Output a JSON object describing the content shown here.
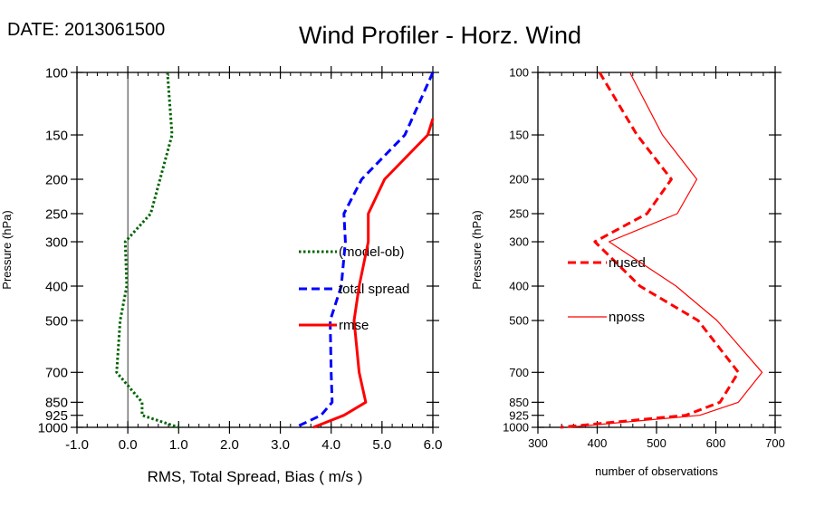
{
  "header": {
    "date_label": "DATE: 2013061500",
    "title": "Wind Profiler - Horz. Wind"
  },
  "colors": {
    "bias": "#006400",
    "spread": "#0000ff",
    "rmse": "#ff0000",
    "zero_line": "#000000"
  },
  "chart_data": [
    {
      "id": "left",
      "type": "line",
      "xlabel": "RMS, Total Spread, Bias ( m/s )",
      "ylabel": "Pressure (hPa)",
      "xlim": [
        -1.0,
        6.0
      ],
      "ylim": [
        1000,
        100
      ],
      "yscale": "log",
      "x_ticks": [
        -1.0,
        0.0,
        1.0,
        2.0,
        3.0,
        4.0,
        5.0,
        6.0
      ],
      "x_tick_labels": [
        "-1.0",
        "0.0",
        "1.0",
        "2.0",
        "3.0",
        "4.0",
        "5.0",
        "6.0"
      ],
      "y_ticks": [
        100,
        150,
        200,
        250,
        300,
        400,
        500,
        700,
        850,
        925,
        1000
      ],
      "y_tick_labels": [
        "100",
        "150",
        "200",
        "250",
        "300",
        "400",
        "500",
        "700",
        "850",
        "925",
        "1000"
      ],
      "zero_line": 0.0,
      "series": [
        {
          "name": "(model-ob)",
          "style": "dotted",
          "color": "#006400",
          "pressure": [
            100,
            150,
            250,
            300,
            400,
            500,
            700,
            850,
            925,
            1000
          ],
          "values": [
            0.78,
            0.87,
            0.45,
            -0.05,
            -0.02,
            -0.15,
            -0.22,
            0.28,
            0.28,
            1.0
          ]
        },
        {
          "name": "total spread",
          "style": "dashed",
          "color": "#0000ff",
          "pressure": [
            100,
            150,
            200,
            250,
            300,
            400,
            500,
            700,
            850,
            925,
            1000
          ],
          "values": [
            6.0,
            5.45,
            4.6,
            4.25,
            4.28,
            4.2,
            3.98,
            4.0,
            4.02,
            3.8,
            3.3
          ]
        },
        {
          "name": "rmse",
          "style": "solid",
          "color": "#ff0000",
          "pressure": [
            135,
            150,
            200,
            250,
            300,
            400,
            500,
            700,
            850,
            925,
            1000
          ],
          "values": [
            6.0,
            5.9,
            5.05,
            4.73,
            4.73,
            4.55,
            4.45,
            4.55,
            4.68,
            4.25,
            3.65
          ]
        }
      ]
    },
    {
      "id": "right",
      "type": "line",
      "xlabel": "number of observations",
      "ylabel": "Pressure (hPa)",
      "xlim": [
        300,
        700
      ],
      "ylim": [
        1000,
        100
      ],
      "yscale": "log",
      "x_ticks": [
        300,
        400,
        500,
        600,
        700
      ],
      "x_tick_labels": [
        "300",
        "400",
        "500",
        "600",
        "700"
      ],
      "y_ticks": [
        100,
        150,
        200,
        250,
        300,
        400,
        500,
        700,
        850,
        925,
        1000
      ],
      "y_tick_labels": [
        "100",
        "150",
        "200",
        "250",
        "300",
        "400",
        "500",
        "700",
        "850",
        "925",
        "1000"
      ],
      "series": [
        {
          "name": "nused",
          "style": "dashed",
          "color": "#ff0000",
          "pressure": [
            100,
            150,
            200,
            250,
            300,
            400,
            500,
            700,
            850,
            925,
            1000
          ],
          "values": [
            404,
            467,
            525,
            484,
            396,
            472,
            570,
            638,
            607,
            549,
            338
          ]
        },
        {
          "name": "nposs",
          "style": "solid",
          "color": "#ff0000",
          "pressure": [
            100,
            150,
            200,
            250,
            300,
            400,
            500,
            700,
            850,
            925,
            1000
          ],
          "values": [
            455,
            510,
            568,
            535,
            420,
            533,
            602,
            678,
            638,
            573,
            350
          ]
        }
      ]
    }
  ]
}
